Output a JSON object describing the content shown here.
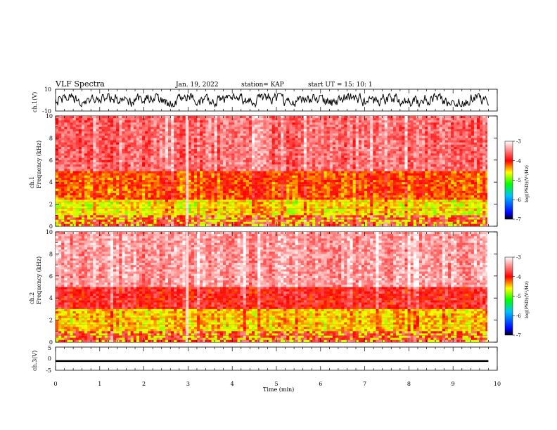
{
  "header": {
    "title": "VLF Spectra",
    "date": "Jan. 19, 2022",
    "station": "station= KAP",
    "start": "start  UT =   15: 10: 1"
  },
  "chart_data": [
    {
      "type": "line",
      "ylabel": "ch.1(V)",
      "ylim": [
        -10,
        10
      ],
      "yticks": [
        "10",
        "-10"
      ],
      "xlim": [
        0,
        10
      ],
      "series": [
        {
          "description_of_values": "voltage oscillating roughly between -6 and 6 V",
          "values_min": -6,
          "values_max": 6
        }
      ]
    },
    {
      "type": "heatmap",
      "ylabel": "ch.1\nFrequency (kHz)",
      "ylim": [
        0,
        10
      ],
      "yticks": [
        "0",
        "2",
        "4",
        "6",
        "8",
        "10"
      ],
      "xlim": [
        0,
        9.8
      ],
      "colorbar": {
        "label": "log(PSD)(V²/Hz)",
        "range": [
          -7,
          -3
        ],
        "ticks": [
          "-3",
          "-4",
          "-5",
          "-6",
          "-7"
        ]
      },
      "bands_khz": [
        {
          "from": 0,
          "to": 1,
          "level": -3.8
        },
        {
          "from": 1,
          "to": 2.5,
          "level": -4.6
        },
        {
          "from": 2.5,
          "to": 5,
          "level": -4.2
        },
        {
          "from": 5,
          "to": 10,
          "level": -3.6
        }
      ]
    },
    {
      "type": "heatmap",
      "ylabel": "ch.2\nFrequency (kHz)",
      "ylim": [
        0,
        10
      ],
      "yticks": [
        "0",
        "2",
        "4",
        "6",
        "8",
        "10"
      ],
      "xlim": [
        0,
        9.8
      ],
      "colorbar": {
        "label": "log(PSD)(V²/Hz)",
        "range": [
          -7,
          -3
        ],
        "ticks": [
          "-3",
          "-4",
          "-5",
          "-6",
          "-7"
        ]
      },
      "bands_khz": [
        {
          "from": 0,
          "to": 1,
          "level": -3.8
        },
        {
          "from": 1,
          "to": 3,
          "level": -4.5
        },
        {
          "from": 3,
          "to": 5,
          "level": -3.9
        },
        {
          "from": 5,
          "to": 10,
          "level": -3.4
        }
      ]
    },
    {
      "type": "line",
      "ylabel": "ch.3(V)",
      "ylim": [
        -5,
        5
      ],
      "yticks": [
        "5",
        "0",
        "-5"
      ],
      "xlim": [
        0,
        10
      ],
      "xlabel": "Time  (min)",
      "xticks": [
        "0",
        "1",
        "2",
        "3",
        "4",
        "5",
        "6",
        "7",
        "8",
        "9",
        "10"
      ],
      "series": [
        {
          "description_of_values": "flat thick band near -1 V",
          "values_min": -1.4,
          "values_max": -0.6
        }
      ]
    }
  ]
}
